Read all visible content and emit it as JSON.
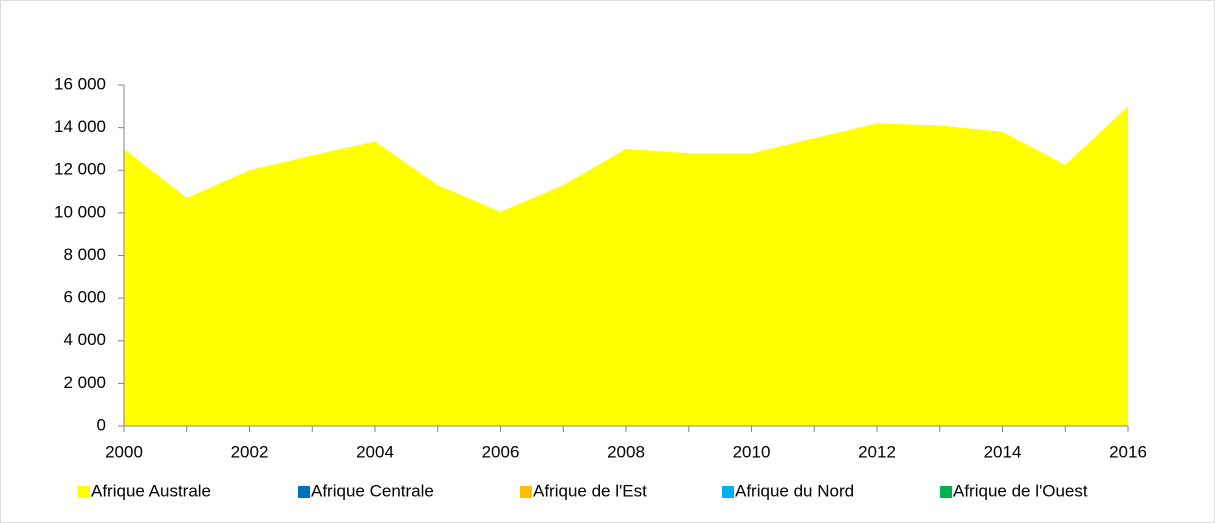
{
  "chart_data": {
    "type": "area",
    "x": [
      2000,
      2001,
      2002,
      2003,
      2004,
      2005,
      2006,
      2007,
      2008,
      2009,
      2010,
      2011,
      2012,
      2013,
      2014,
      2015,
      2016
    ],
    "series": [
      {
        "name": "Afrique Australe",
        "color": "#ffff00",
        "values": [
          13000,
          10700,
          12000,
          12700,
          13350,
          11300,
          10050,
          11300,
          13000,
          12800,
          12800,
          13500,
          14200,
          14100,
          13800,
          12250,
          15000
        ]
      },
      {
        "name": "Afrique Centrale",
        "color": "#0070c0",
        "values": [
          null,
          null,
          null,
          null,
          null,
          null,
          null,
          null,
          null,
          null,
          null,
          null,
          null,
          null,
          null,
          null,
          null
        ]
      },
      {
        "name": "Afrique de l'Est",
        "color": "#ffc000",
        "values": [
          null,
          null,
          null,
          null,
          null,
          null,
          null,
          null,
          null,
          null,
          null,
          null,
          null,
          null,
          null,
          null,
          null
        ]
      },
      {
        "name": "Afrique du Nord",
        "color": "#00b0f0",
        "values": [
          null,
          null,
          null,
          null,
          null,
          null,
          null,
          null,
          null,
          null,
          null,
          null,
          null,
          null,
          null,
          null,
          null
        ]
      },
      {
        "name": "Afrique de l'Ouest",
        "color": "#00b050",
        "values": [
          null,
          null,
          null,
          null,
          null,
          null,
          null,
          null,
          null,
          null,
          null,
          null,
          null,
          null,
          null,
          null,
          null
        ]
      }
    ],
    "xlim": [
      2000,
      2016
    ],
    "xticks": [
      2000,
      2002,
      2004,
      2006,
      2008,
      2010,
      2012,
      2014,
      2016
    ],
    "ylim": [
      0,
      16000
    ],
    "yticks": [
      0,
      {
        "value": 2000,
        "label": "2 000"
      },
      {
        "value": 4000,
        "label": "4 000"
      },
      {
        "value": 6000,
        "label": "6 000"
      },
      {
        "value": 8000,
        "label": "8 000"
      },
      {
        "value": 10000,
        "label": "10 000"
      },
      {
        "value": 12000,
        "label": "12 000"
      },
      {
        "value": 14000,
        "label": "14 000"
      },
      {
        "value": 16000,
        "label": "16 000"
      }
    ],
    "legend": "bottom"
  }
}
